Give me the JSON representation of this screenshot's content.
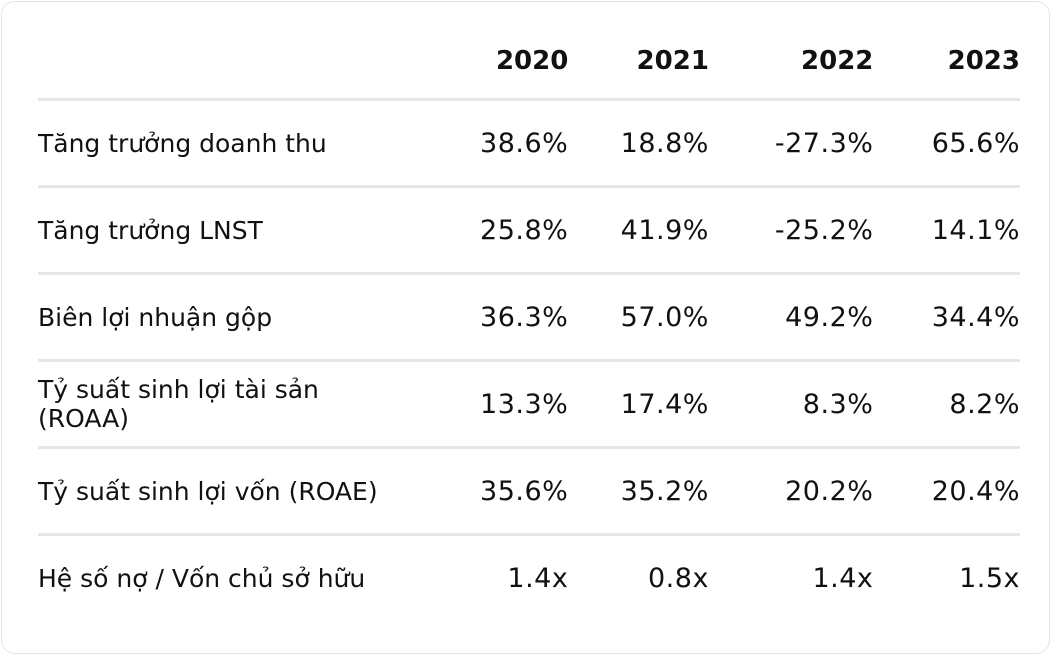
{
  "table": {
    "headers": [
      "",
      "2020",
      "2021",
      "2022",
      "2023"
    ],
    "rows": [
      {
        "label": "Tăng trưởng doanh thu",
        "values": [
          "38.6%",
          "18.8%",
          "-27.3%",
          "65.6%"
        ]
      },
      {
        "label": "Tăng trưởng LNST",
        "values": [
          "25.8%",
          "41.9%",
          "-25.2%",
          "14.1%"
        ]
      },
      {
        "label": "Biên lợi nhuận gộp",
        "values": [
          "36.3%",
          "57.0%",
          "49.2%",
          "34.4%"
        ]
      },
      {
        "label": "Tỷ suất sinh lợi tài sản (ROAA)",
        "values": [
          "13.3%",
          "17.4%",
          "8.3%",
          "8.2%"
        ]
      },
      {
        "label": "Tỷ suất sinh lợi vốn (ROAE)",
        "values": [
          "35.6%",
          "35.2%",
          "20.2%",
          "20.4%"
        ]
      },
      {
        "label": "Hệ số nợ / Vốn chủ sở hữu",
        "values": [
          "1.4x",
          "0.8x",
          "1.4x",
          "1.5x"
        ]
      }
    ]
  }
}
